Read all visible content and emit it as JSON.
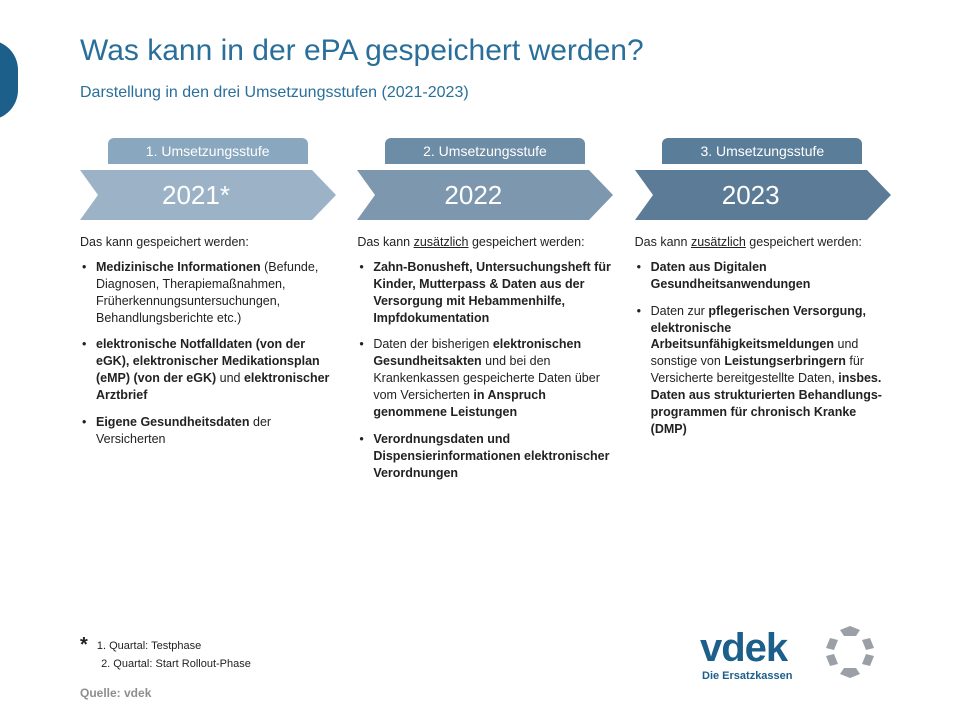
{
  "colors": {
    "title": "#2a6f9a",
    "subtitle": "#2a6f9a",
    "tab1_bg": "#89a8bf",
    "tab2_bg": "#6d8ca6",
    "tab3_bg": "#5a7d99",
    "arrow1_bg": "#9cb3c7",
    "arrow2_bg": "#7d97ae",
    "arrow3_bg": "#5b7b96",
    "body_text": "#1a1a1a",
    "logo_text": "#1b5f8a",
    "logo_ring": "#9aa0a6"
  },
  "title": "Was kann in der ePA gespeichert werden?",
  "subtitle": "Darstellung in den drei Umsetzungsstufen (2021-2023)",
  "columns": [
    {
      "tab": "1. Umsetzungsstufe",
      "year": "2021*",
      "intro_plain": "Das kann gespeichert werden:",
      "intro_zus": false,
      "bullets": [
        "<b>Medizinische Informationen</b> (Befunde, Diagnosen, Therapiemaßnahmen, Früherkennungsuntersuchungen, Behandlungsberichte etc.)",
        "<b>elektronische Notfalldaten (von der eGK), elektronischer Medikationsplan (eMP) (von der eGK)</b> und <b>elektronischer Arztbrief</b>",
        "<b>Eigene Gesundheitsdaten</b> der Versicherten"
      ]
    },
    {
      "tab": "2. Umsetzungsstufe",
      "year": "2022",
      "intro_plain": "Das kann",
      "intro_after": "gespeichert werden:",
      "intro_zus": true,
      "bullets": [
        "<b>Zahn-Bonusheft, Untersuchungsheft für Kinder, Mutterpass &amp; Daten aus der Versorgung mit Hebammenhilfe, Impfdokumentation</b>",
        "Daten der bisherigen <b>elektronischen Gesundheitsakten</b> und bei den Krankenkassen gespeicherte Daten über vom Versicherten <b>in Anspruch genommene Leistungen</b>",
        "<b>Verordnungsdaten und Dispensierinformationen elektronischer Verordnungen</b>"
      ]
    },
    {
      "tab": "3. Umsetzungsstufe",
      "year": "2023",
      "intro_plain": "Das kann",
      "intro_after": "gespeichert werden:",
      "intro_zus": true,
      "bullets": [
        "<b>Daten aus Digitalen Gesundheitsanwendungen</b>",
        "Daten zur <b>pflegerischen Versorgung, elektronische Arbeitsunfähigkeitsmeldungen</b> und sonstige von <b>Leistungserbringern</b> für Versicherte bereitgestellte Daten, <b>insbes. Daten aus strukturierten Behandlungs-programmen für chronisch Kranke (DMP)</b>"
      ]
    }
  ],
  "footnote": {
    "line1": "1. Quartal: Testphase",
    "line2": "2. Quartal: Start Rollout-Phase"
  },
  "source": "Quelle: vdek",
  "logo": {
    "text": "vdek",
    "tagline": "Die Ersatzkassen"
  }
}
